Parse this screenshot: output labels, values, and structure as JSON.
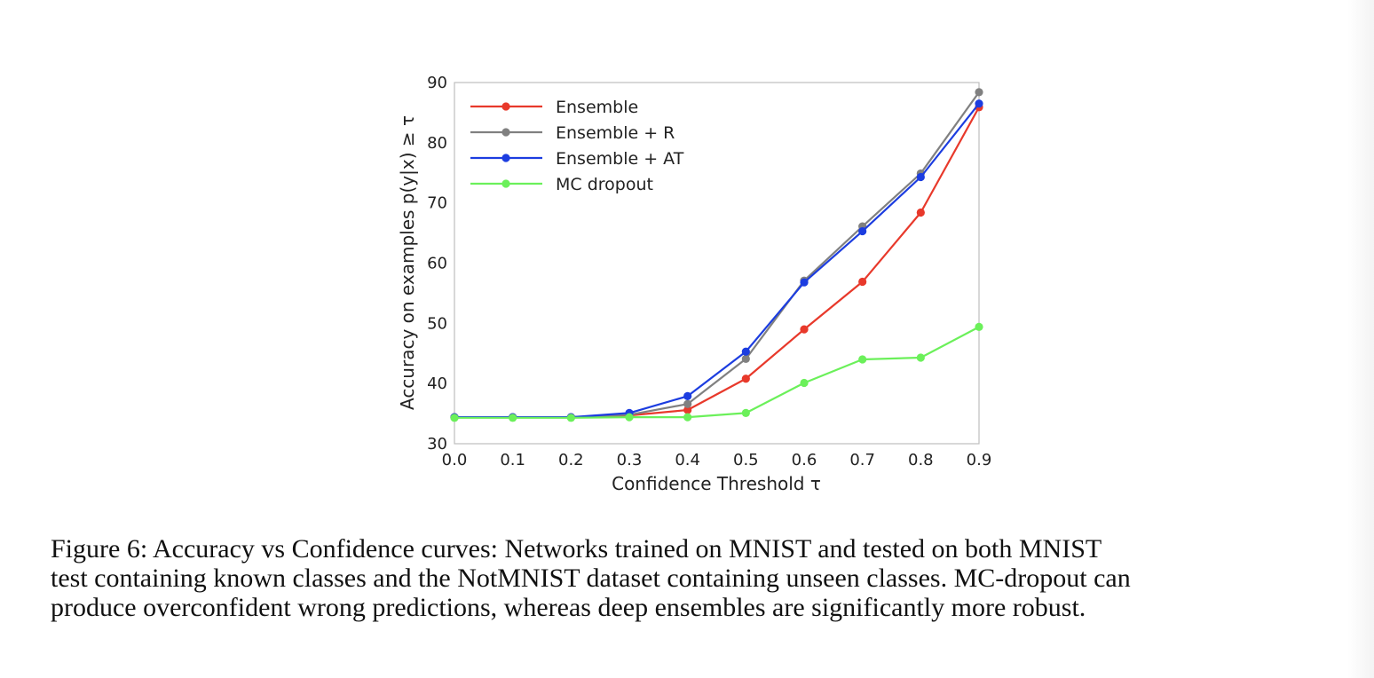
{
  "chart_data": {
    "type": "line",
    "xlabel": "Confidence Threshold τ",
    "ylabel": "Accuracy on examples p(y|x) ≥ τ",
    "xlim": [
      0.0,
      0.9
    ],
    "ylim": [
      30,
      90
    ],
    "xticks": [
      "0.0",
      "0.1",
      "0.2",
      "0.3",
      "0.4",
      "0.5",
      "0.6",
      "0.7",
      "0.8",
      "0.9"
    ],
    "yticks": [
      "30",
      "40",
      "50",
      "60",
      "70",
      "80",
      "90"
    ],
    "grid": false,
    "legend_position": "top-left",
    "x": [
      0.0,
      0.1,
      0.2,
      0.3,
      0.4,
      0.5,
      0.6,
      0.7,
      0.8,
      0.9
    ],
    "series": [
      {
        "name": "Ensemble",
        "color": "#e8392b",
        "values": [
          34.4,
          34.4,
          34.4,
          34.7,
          35.6,
          40.8,
          49.0,
          56.9,
          68.4,
          85.9
        ]
      },
      {
        "name": "Ensemble + R",
        "color": "#808080",
        "values": [
          34.4,
          34.4,
          34.4,
          34.8,
          36.6,
          44.1,
          57.1,
          66.1,
          74.9,
          88.4
        ]
      },
      {
        "name": "Ensemble + AT",
        "color": "#1c3de0",
        "values": [
          34.4,
          34.4,
          34.4,
          35.1,
          37.9,
          45.3,
          56.8,
          65.3,
          74.3,
          86.5
        ]
      },
      {
        "name": "MC dropout",
        "color": "#6bf05a",
        "values": [
          34.3,
          34.3,
          34.3,
          34.4,
          34.4,
          35.1,
          40.1,
          44.0,
          44.3,
          49.4
        ]
      }
    ]
  },
  "caption": {
    "line1": "Figure 6: Accuracy vs Confidence curves: Networks trained on MNIST and tested on both MNIST",
    "line2": "test containing known classes and the NotMNIST dataset containing unseen classes. MC-dropout can",
    "line3": "produce overconfident wrong predictions, whereas deep ensembles are significantly more robust."
  }
}
